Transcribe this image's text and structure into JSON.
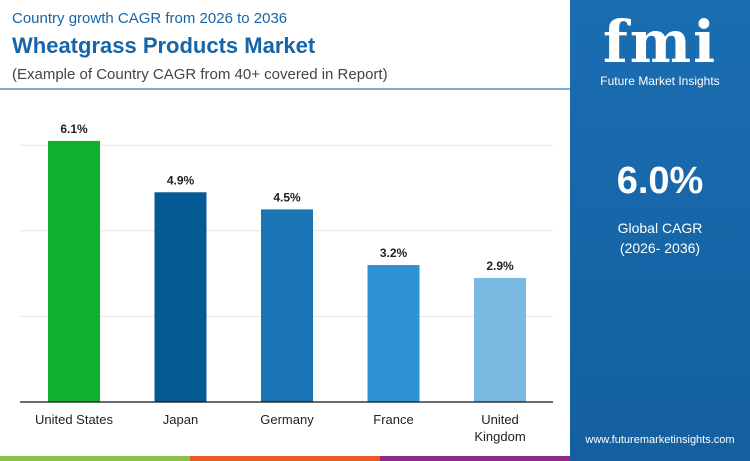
{
  "header": {
    "subtitle": "Country growth CAGR from 2026 to 2036",
    "title": "Wheatgrass Products Market",
    "note": "(Example of Country CAGR from 40+ covered in Report)"
  },
  "panel": {
    "logo": "fmi",
    "brand": "Future Market Insights",
    "value": "6.0%",
    "label1": "Global CAGR",
    "label2": "(2026- 2036)",
    "url": "www.futuremarketinsights.com"
  },
  "chart_data": {
    "type": "bar",
    "categories": [
      "United States",
      "Japan",
      "Germany",
      "France",
      "United Kingdom"
    ],
    "values": [
      6.1,
      4.9,
      4.5,
      3.2,
      2.9
    ],
    "labels": [
      "6.1%",
      "4.9%",
      "4.5%",
      "3.2%",
      "2.9%"
    ],
    "colors": [
      "#0fb02f",
      "#055a93",
      "#1b74b3",
      "#2e93d6",
      "#7ab9e2"
    ],
    "ylim": [
      0,
      6.1
    ],
    "grid": true
  }
}
